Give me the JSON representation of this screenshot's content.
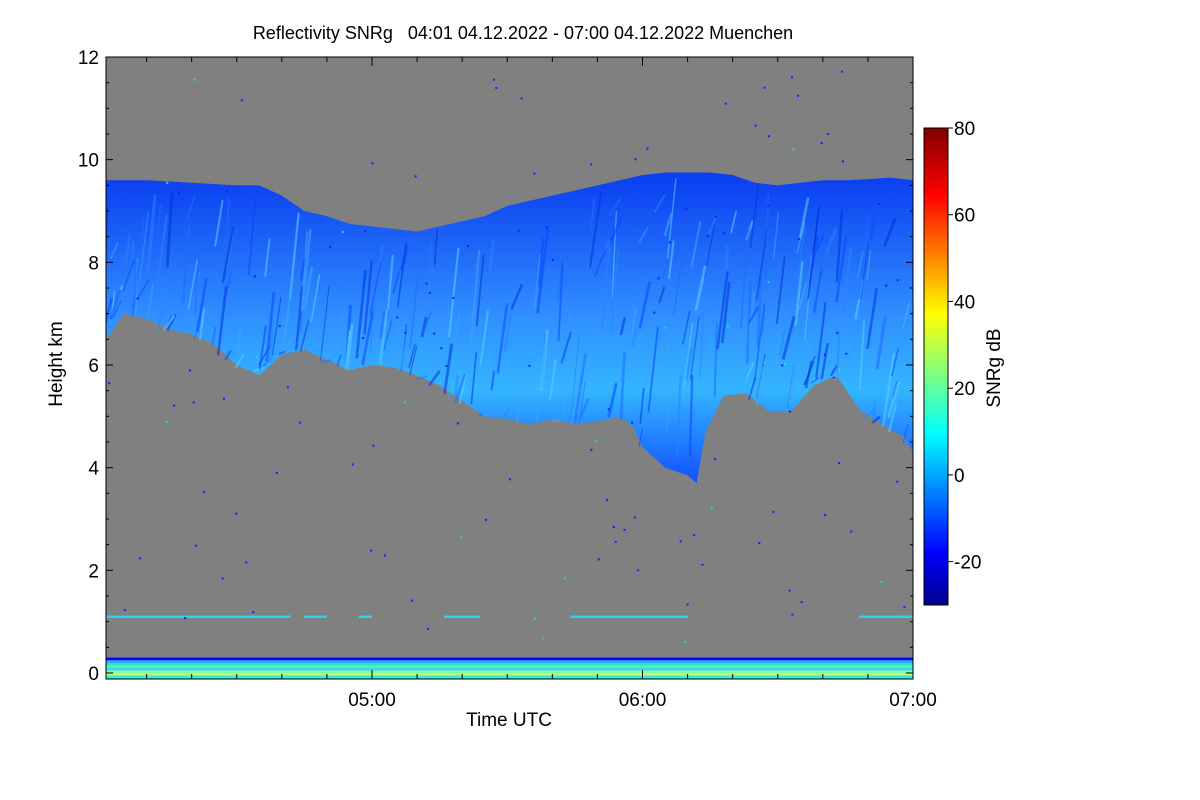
{
  "chart_data": {
    "type": "heatmap",
    "title": "Reflectivity SNRg   04:01 04.12.2022 - 07:00 04.12.2022 Muenchen",
    "xlabel": "Time UTC",
    "ylabel": "Height km",
    "x_range_minutes": [
      241,
      420
    ],
    "ylim": [
      0,
      12
    ],
    "x_ticks": [
      {
        "minute": 300,
        "label": "05:00"
      },
      {
        "minute": 360,
        "label": "06:00"
      },
      {
        "minute": 420,
        "label": "07:00"
      }
    ],
    "y_ticks": [
      {
        "value": 0,
        "label": "0"
      },
      {
        "value": 2,
        "label": "2"
      },
      {
        "value": 4,
        "label": "4"
      },
      {
        "value": 6,
        "label": "6"
      },
      {
        "value": 8,
        "label": "8"
      },
      {
        "value": 10,
        "label": "10"
      },
      {
        "value": 12,
        "label": "12"
      }
    ],
    "colorbar": {
      "label": "SNRg dB",
      "range": [
        -30,
        80
      ],
      "ticks": [
        {
          "value": -20,
          "label": "-20"
        },
        {
          "value": 0,
          "label": "0"
        },
        {
          "value": 20,
          "label": "20"
        },
        {
          "value": 40,
          "label": "40"
        },
        {
          "value": 60,
          "label": "60"
        },
        {
          "value": 80,
          "label": "80"
        }
      ]
    },
    "background_color": "#808080",
    "cloud_layer": {
      "description_minutes_heights_km": true,
      "top_km": [
        [
          241,
          9.6
        ],
        [
          250,
          9.6
        ],
        [
          260,
          9.55
        ],
        [
          270,
          9.5
        ],
        [
          275,
          9.5
        ],
        [
          280,
          9.3
        ],
        [
          285,
          9.0
        ],
        [
          290,
          8.9
        ],
        [
          295,
          8.75
        ],
        [
          300,
          8.7
        ],
        [
          305,
          8.65
        ],
        [
          310,
          8.6
        ],
        [
          315,
          8.7
        ],
        [
          320,
          8.8
        ],
        [
          325,
          8.9
        ],
        [
          330,
          9.1
        ],
        [
          335,
          9.2
        ],
        [
          340,
          9.3
        ],
        [
          345,
          9.4
        ],
        [
          350,
          9.5
        ],
        [
          355,
          9.6
        ],
        [
          360,
          9.7
        ],
        [
          365,
          9.75
        ],
        [
          370,
          9.75
        ],
        [
          375,
          9.75
        ],
        [
          380,
          9.7
        ],
        [
          385,
          9.55
        ],
        [
          390,
          9.5
        ],
        [
          395,
          9.55
        ],
        [
          400,
          9.6
        ],
        [
          405,
          9.6
        ],
        [
          410,
          9.62
        ],
        [
          415,
          9.65
        ],
        [
          420,
          9.6
        ]
      ],
      "base_km": [
        [
          241,
          6.5
        ],
        [
          245,
          7.0
        ],
        [
          250,
          6.9
        ],
        [
          255,
          6.7
        ],
        [
          260,
          6.6
        ],
        [
          265,
          6.4
        ],
        [
          270,
          6.0
        ],
        [
          275,
          5.8
        ],
        [
          280,
          6.2
        ],
        [
          285,
          6.3
        ],
        [
          290,
          6.1
        ],
        [
          295,
          5.9
        ],
        [
          300,
          6.0
        ],
        [
          305,
          5.95
        ],
        [
          310,
          5.8
        ],
        [
          315,
          5.6
        ],
        [
          320,
          5.3
        ],
        [
          325,
          5.0
        ],
        [
          330,
          4.95
        ],
        [
          335,
          4.85
        ],
        [
          340,
          4.95
        ],
        [
          345,
          4.85
        ],
        [
          350,
          4.9
        ],
        [
          355,
          5.0
        ],
        [
          358,
          4.8
        ],
        [
          360,
          4.4
        ],
        [
          365,
          4.0
        ],
        [
          370,
          3.85
        ],
        [
          372,
          3.7
        ],
        [
          374,
          4.7
        ],
        [
          378,
          5.4
        ],
        [
          383,
          5.45
        ],
        [
          388,
          5.1
        ],
        [
          393,
          5.1
        ],
        [
          398,
          5.6
        ],
        [
          403,
          5.8
        ],
        [
          408,
          5.15
        ],
        [
          413,
          4.85
        ],
        [
          418,
          4.6
        ],
        [
          420,
          4.3
        ]
      ],
      "snr_range_db": [
        -25,
        10
      ]
    },
    "ground_clutter": {
      "height_km": [
        0,
        0.3
      ],
      "snr_range_db": [
        -20,
        40
      ]
    },
    "artifact_line": {
      "height_km": 1.1,
      "snr_db": 5
    }
  }
}
